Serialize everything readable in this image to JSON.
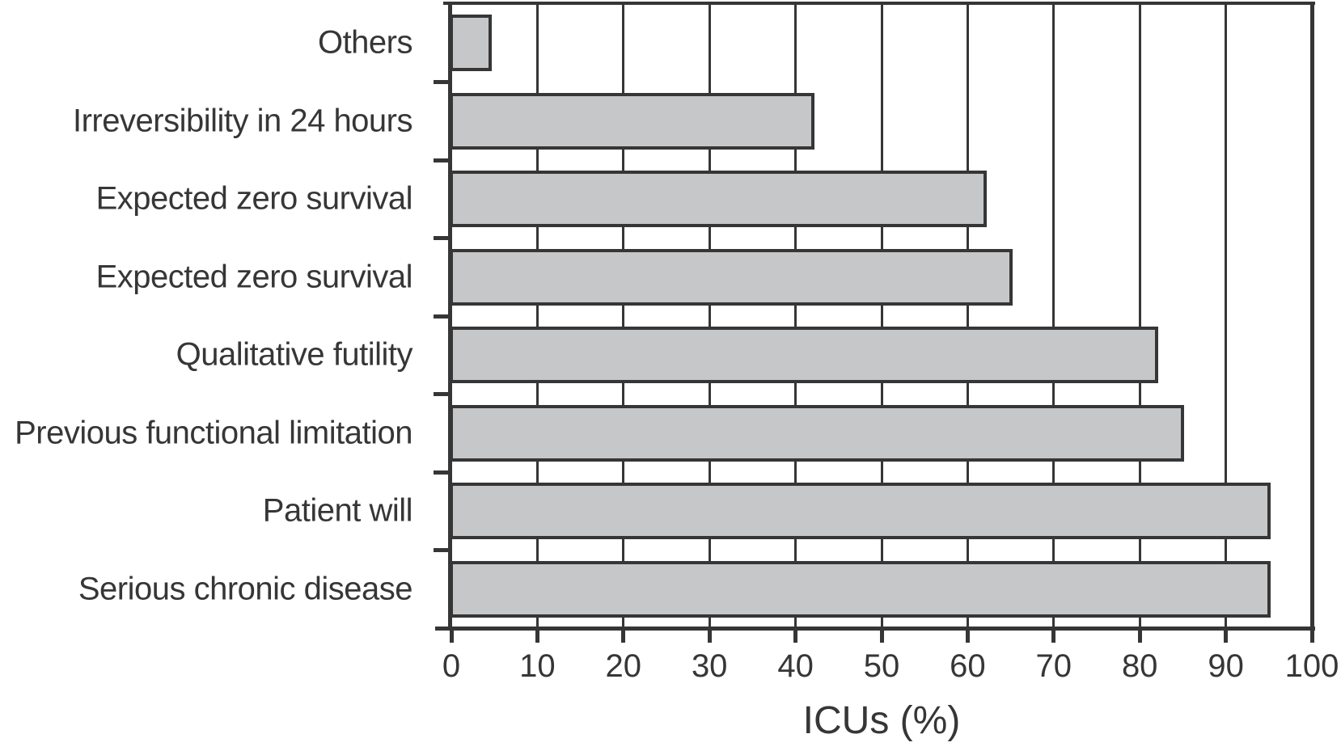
{
  "chart_data": {
    "type": "bar",
    "orientation": "horizontal",
    "title": "",
    "xlabel": "ICUs (%)",
    "ylabel": "",
    "xlim": [
      0,
      100
    ],
    "xticks": [
      0,
      10,
      20,
      30,
      40,
      50,
      60,
      70,
      80,
      90,
      100
    ],
    "grid": "vertical gridlines at every x tick",
    "legend": "none",
    "categories_top_to_bottom": [
      "Others",
      "Irreversibility in 24 hours",
      "Expected zero survival",
      "Expected zero survival",
      "Qualitative futility",
      "Previous functional limitation",
      "Patient will",
      "Serious chronic disease"
    ],
    "values": [
      4.5,
      42,
      62,
      65,
      82,
      85,
      95,
      95
    ],
    "colors": {
      "bar_fill": "#c6c7c8",
      "line": "#363636",
      "text": "#363636",
      "background": "#ffffff"
    }
  }
}
